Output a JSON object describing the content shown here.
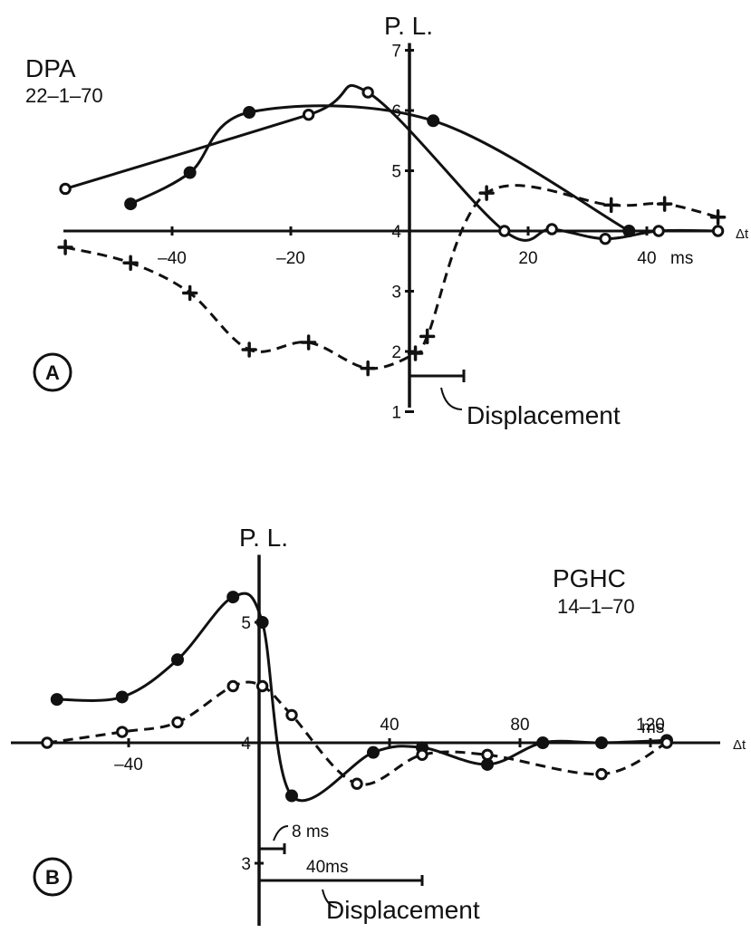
{
  "colors": {
    "ink": "#111111",
    "paper": "#ffffff"
  },
  "chart_data": [
    {
      "type": "line",
      "panel_label": "A",
      "title": "DPA",
      "subtitle": "22–1–70",
      "ylabel": "P. L.",
      "xlabel": "Δt",
      "x_unit": "ms",
      "xlim": [
        -62,
        52
      ],
      "ylim": [
        1,
        7
      ],
      "x_ticks": [
        -40,
        -20,
        20,
        40
      ],
      "x_tick_labels": [
        "–40",
        "–20",
        "20",
        "40"
      ],
      "y_ticks": [
        1,
        2,
        3,
        4,
        5,
        6,
        7
      ],
      "y_tick_labels": [
        "1",
        "2",
        "3",
        "4",
        "5",
        "6",
        "7"
      ],
      "annotation": "Displacement",
      "displacement_ms": [
        0,
        10
      ],
      "series": [
        {
          "marker": "filled-circle",
          "line": "solid",
          "points": [
            [
              -47,
              4.45
            ],
            [
              -37,
              4.97
            ],
            [
              -27,
              5.97
            ],
            [
              4,
              5.83
            ],
            [
              37,
              4.0
            ]
          ]
        },
        {
          "marker": "open-circle",
          "line": "solid",
          "points": [
            [
              -58,
              4.7
            ],
            [
              -17,
              5.93
            ],
            [
              -7,
              6.3
            ],
            [
              16,
              4.0
            ],
            [
              24,
              4.03
            ],
            [
              33,
              3.87
            ],
            [
              42,
              4.0
            ],
            [
              52,
              4.0
            ]
          ]
        },
        {
          "marker": "plus",
          "line": "dashed",
          "points": [
            [
              -58,
              3.73
            ],
            [
              -47,
              3.47
            ],
            [
              -37,
              2.97
            ],
            [
              -27,
              2.03
            ],
            [
              -17,
              2.15
            ],
            [
              -7,
              1.72
            ],
            [
              1,
              1.97
            ],
            [
              3,
              2.25
            ],
            [
              13,
              4.63
            ],
            [
              34,
              4.43
            ],
            [
              43,
              4.45
            ],
            [
              52,
              4.23
            ]
          ]
        }
      ]
    },
    {
      "type": "line",
      "panel_label": "B",
      "title": "PGHC",
      "subtitle": "14–1–70",
      "ylabel": "P. L.",
      "xlabel": "Δt",
      "x_unit": "ms",
      "xlim": [
        -65,
        135
      ],
      "ylim": [
        2.8,
        5.5
      ],
      "x_ticks": [
        -40,
        40,
        80,
        120
      ],
      "x_tick_labels": [
        "–40",
        "40",
        "80",
        "120"
      ],
      "x_tick_suffix": "ms",
      "y_ticks": [
        3,
        4,
        5
      ],
      "y_tick_labels": [
        "3",
        "4",
        "5"
      ],
      "annotation": "Displacement",
      "displacement_labels": [
        "8 ms",
        "40ms"
      ],
      "displacement_ms": [
        [
          0,
          8
        ],
        [
          0,
          40
        ]
      ],
      "series": [
        {
          "marker": "filled-circle",
          "line": "solid",
          "points": [
            [
              -62,
              4.36
            ],
            [
              -42,
              4.38
            ],
            [
              -25,
              4.69
            ],
            [
              -8,
              5.21
            ],
            [
              1,
              5.0
            ],
            [
              10,
              3.56
            ],
            [
              35,
              3.92
            ],
            [
              50,
              3.96
            ],
            [
              70,
              3.82
            ],
            [
              87,
              4.0
            ],
            [
              105,
              4.0
            ],
            [
              125,
              4.02
            ]
          ]
        },
        {
          "marker": "open-circle",
          "line": "dashed",
          "points": [
            [
              -65,
              4.0
            ],
            [
              -42,
              4.09
            ],
            [
              -25,
              4.17
            ],
            [
              -8,
              4.47
            ],
            [
              1,
              4.47
            ],
            [
              10,
              4.23
            ],
            [
              30,
              3.66
            ],
            [
              50,
              3.9
            ],
            [
              70,
              3.9
            ],
            [
              105,
              3.74
            ],
            [
              125,
              4.0
            ]
          ]
        }
      ]
    }
  ]
}
